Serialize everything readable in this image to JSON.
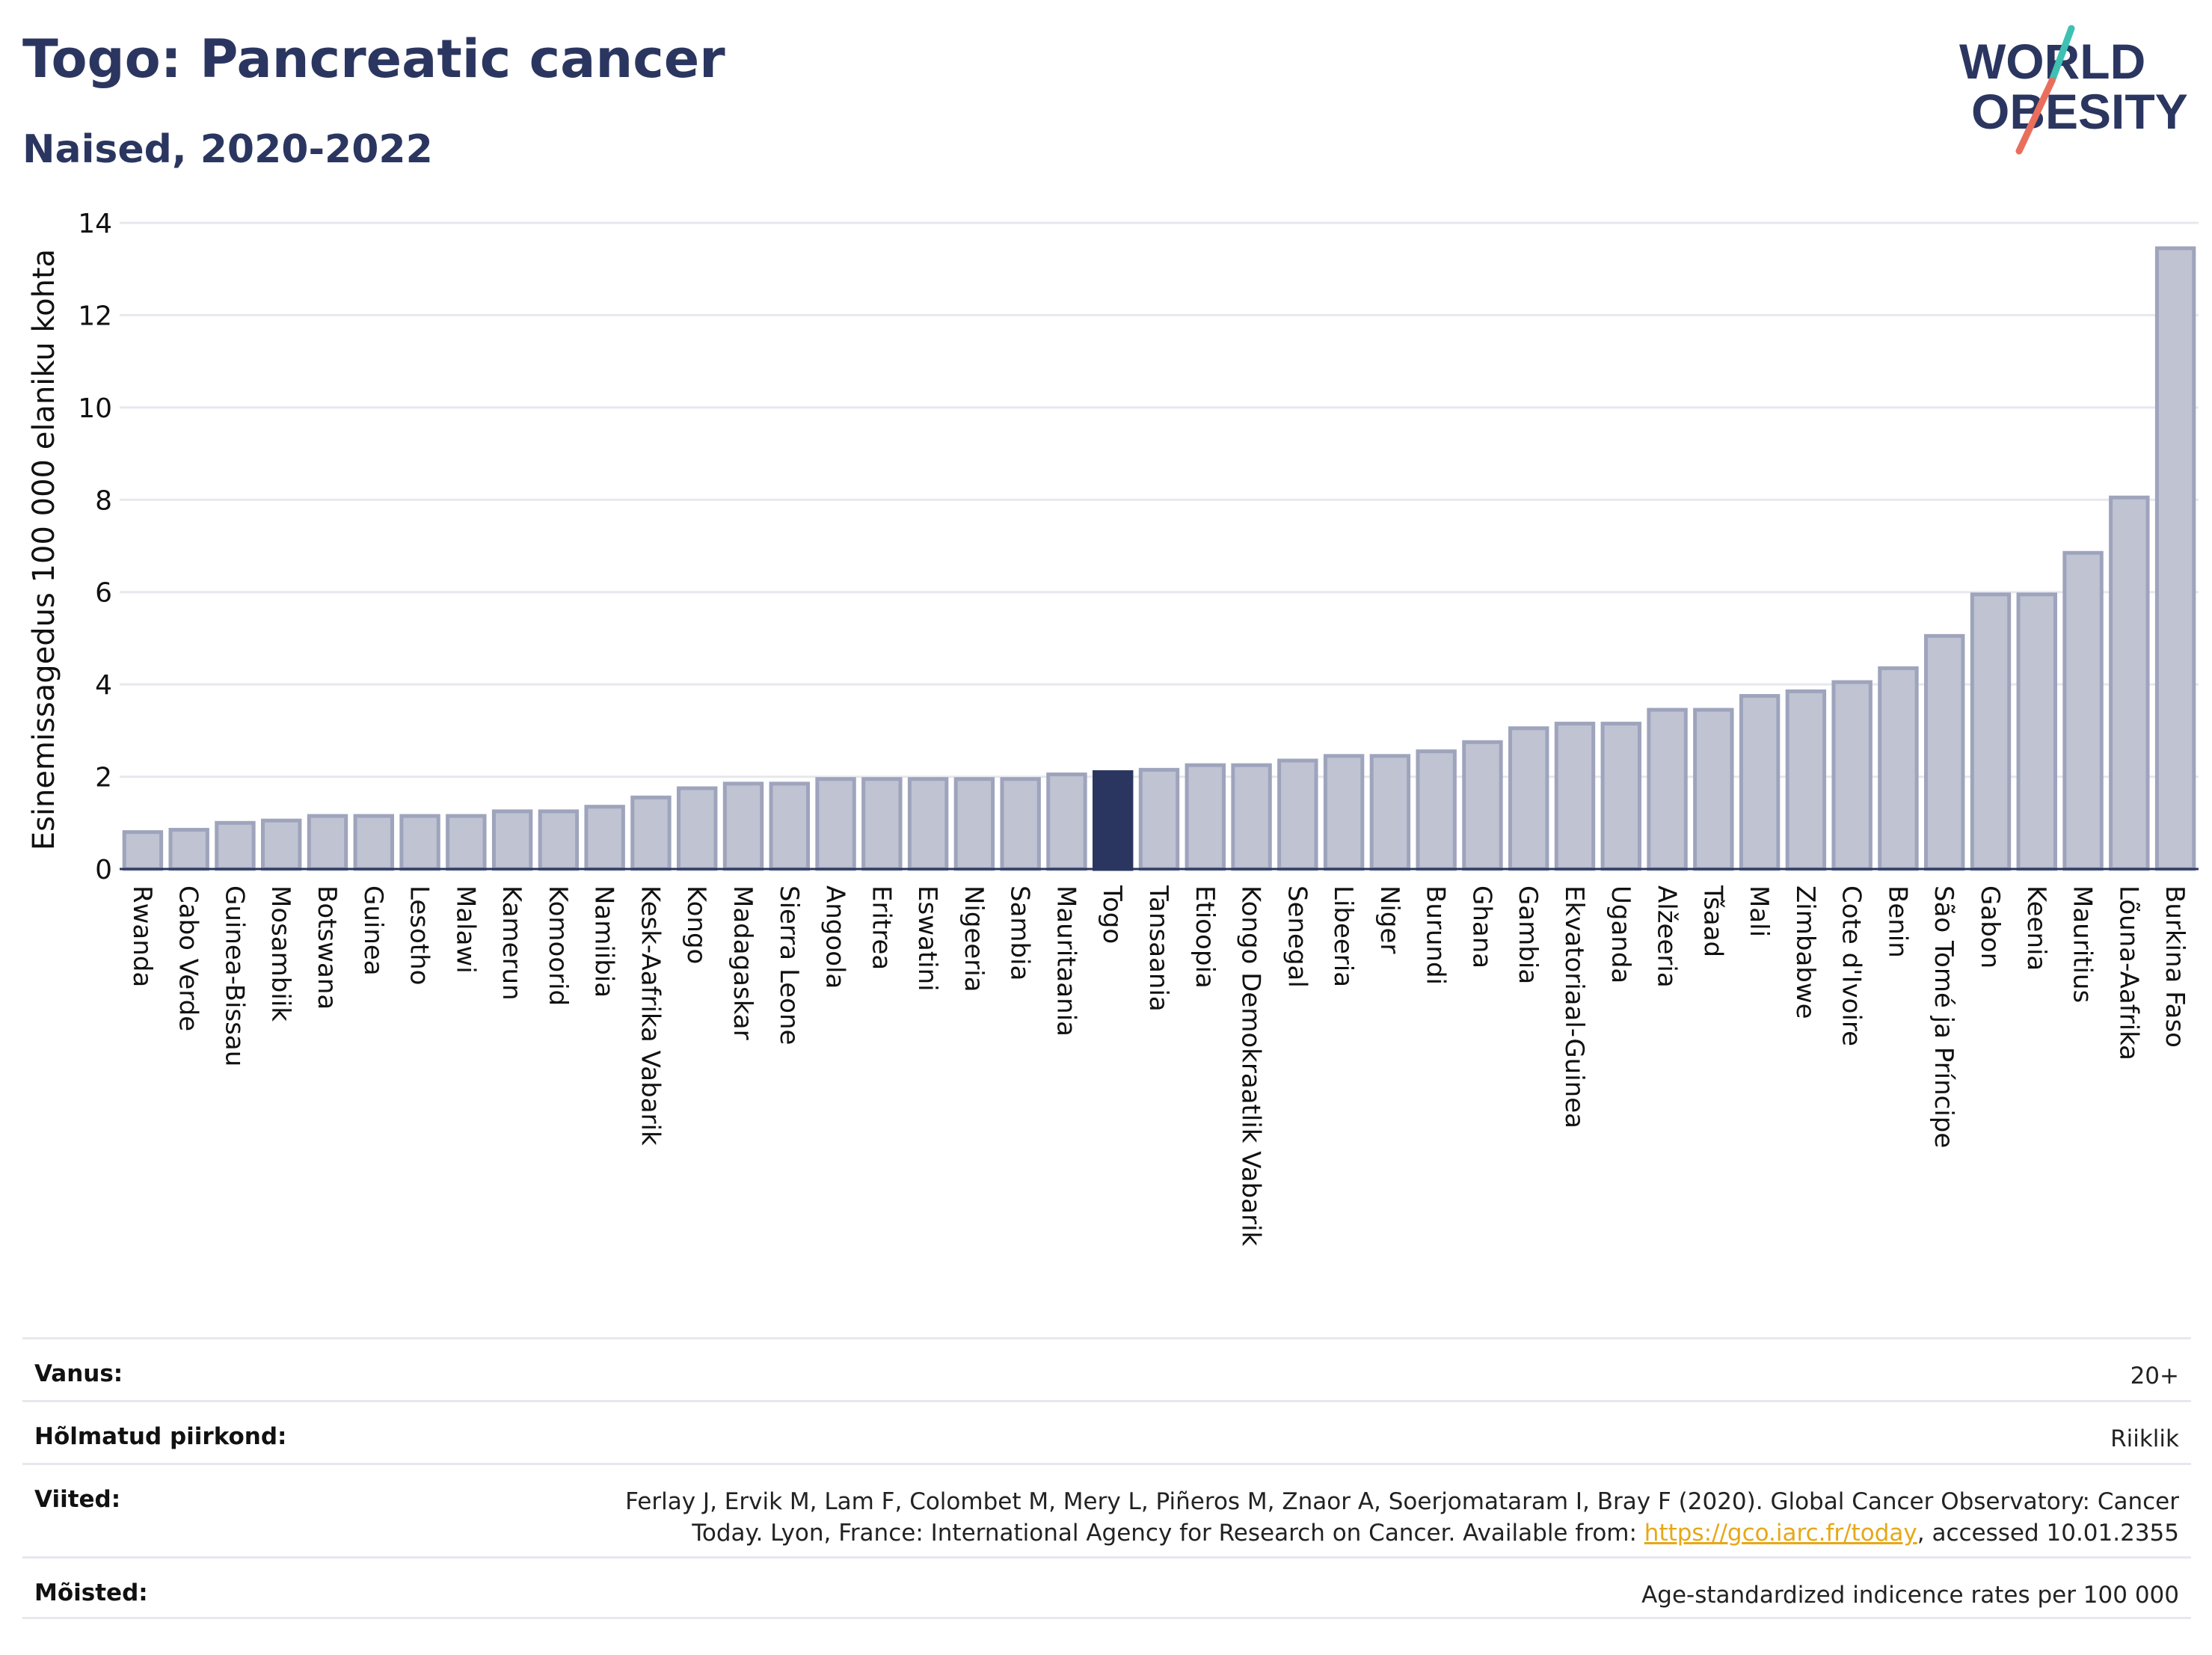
{
  "header": {
    "title": "Togo: Pancreatic cancer",
    "subtitle": "Naised, 2020-2022",
    "logo_line1": "WORLD",
    "logo_line2": "OBESITY"
  },
  "colors": {
    "bar": "#bfc3d2",
    "bar_border": "#9ea4bc",
    "highlight": "#2b3660",
    "grid": "#e6e8ee",
    "axis": "#2b3660",
    "logo_teal": "#3ec1b3",
    "logo_coral": "#ea6e5c"
  },
  "chart_data": {
    "type": "bar",
    "ylabel": "Esinemissagedus 100 000 elaniku kohta",
    "ylim": [
      0,
      14
    ],
    "yticks": [
      0,
      2,
      4,
      6,
      8,
      10,
      12,
      14
    ],
    "highlight": "Togo",
    "grid": true,
    "categories": [
      "Rwanda",
      "Cabo Verde",
      "Guinea-Bissau",
      "Mosambiik",
      "Botswana",
      "Guinea",
      "Lesotho",
      "Malawi",
      "Kamerun",
      "Komoorid",
      "Namiibia",
      "Kesk-Aafrika Vabarik",
      "Kongo",
      "Madagaskar",
      "Sierra Leone",
      "Angoola",
      "Eritrea",
      "Eswatini",
      "Nigeeria",
      "Sambia",
      "Mauritaania",
      "Togo",
      "Tansaania",
      "Etioopia",
      "Kongo Demokraatlik Vabarik",
      "Senegal",
      "Libeeria",
      "Niger",
      "Burundi",
      "Ghana",
      "Gambia",
      "Ekvatoriaal-Guinea",
      "Uganda",
      "Alžeeria",
      "Tšaad",
      "Mali",
      "Zimbabwe",
      "Cote d'Ivoire",
      "Benin",
      "São Tomé ja Príncipe",
      "Gabon",
      "Keenia",
      "Mauritius",
      "Lõuna-Aafrika",
      "Burkina Faso"
    ],
    "values": [
      0.8,
      0.85,
      1.0,
      1.05,
      1.15,
      1.15,
      1.15,
      1.15,
      1.25,
      1.25,
      1.35,
      1.55,
      1.75,
      1.85,
      1.85,
      1.95,
      1.95,
      1.95,
      1.95,
      1.95,
      2.05,
      2.1,
      2.15,
      2.25,
      2.25,
      2.35,
      2.45,
      2.45,
      2.55,
      2.75,
      3.05,
      3.15,
      3.15,
      3.45,
      3.45,
      3.75,
      3.85,
      4.05,
      4.35,
      5.05,
      5.95,
      5.95,
      6.85,
      8.05,
      13.45
    ]
  },
  "info": {
    "age_label": "Vanus:",
    "age_value": "20+",
    "region_label": "Hõlmatud piirkond:",
    "region_value": "Riiklik",
    "refs_label": "Viited:",
    "refs_line1": "Ferlay J, Ervik M, Lam F, Colombet M, Mery L, Piñeros M, Znaor A, Soerjomataram I, Bray F (2020). Global Cancer Observatory: Cancer",
    "refs_line2_pre": "Today. Lyon, France: International Agency for Research on Cancer. Available from: ",
    "refs_link": "https://gco.iarc.fr/today",
    "refs_line2_post": ", accessed 10.01.2355",
    "defs_label": "Mõisted:",
    "defs_value": "Age-standardized indicence rates per 100 000"
  }
}
